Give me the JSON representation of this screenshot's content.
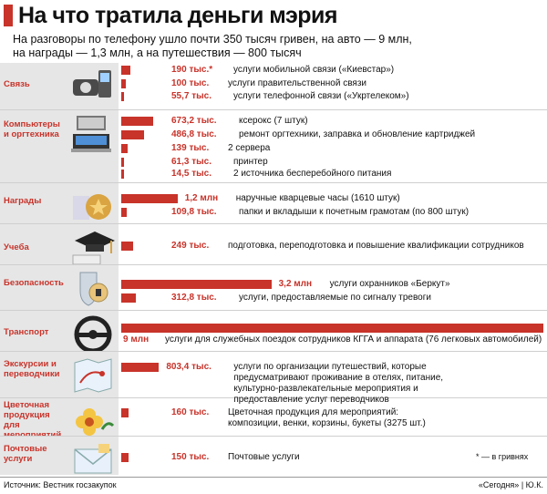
{
  "title": "На что тратила деньги мэрия",
  "subtitle_line1": "На разговоры по телефону ушло почти 350 тысяч гривен, на авто — 9 млн,",
  "subtitle_line2": "на награды — 1,3 млн, а на путешествия — 800 тысяч",
  "note": "* — в гривнях",
  "footer": {
    "source": "Источник: Вестник госзакупок",
    "credit": "«Сегодня» | Ю.К."
  },
  "colors": {
    "accent": "#c8332a",
    "category_bg": "#e6e6e6"
  },
  "categories": [
    {
      "label": "Связь",
      "icon": "phone-icon"
    },
    {
      "label": "Компьютеры и оргтехника",
      "icon": "computer-icon"
    },
    {
      "label": "Награды",
      "icon": "medal-icon"
    },
    {
      "label": "Учеба",
      "icon": "graduation-cap-icon"
    },
    {
      "label": "Безопасность",
      "icon": "shield-lock-icon"
    },
    {
      "label": "Транспорт",
      "icon": "steering-wheel-icon"
    },
    {
      "label": "Экскурсии и переводчики",
      "icon": "map-icon"
    },
    {
      "label": "Цветочная продукция для мероприятий",
      "icon": "flower-icon"
    },
    {
      "label": "Почтовые услуги",
      "icon": "envelope-icon"
    }
  ],
  "chart_data": {
    "type": "bar",
    "orientation": "horizontal",
    "unit": "гривен",
    "items": [
      {
        "category": "Связь",
        "value": 190000,
        "label": "190 тыс.*",
        "description": "услуги мобильной связи («Киевстар»)"
      },
      {
        "category": "Связь",
        "value": 100000,
        "label": "100 тыс.",
        "description": "услуги правительственной связи"
      },
      {
        "category": "Связь",
        "value": 55700,
        "label": "55,7 тыс.",
        "description": "услуги телефонной связи («Укртелеком»)"
      },
      {
        "category": "Компьютеры и оргтехника",
        "value": 673200,
        "label": "673,2 тыс.",
        "description": "ксерокс (7 штук)"
      },
      {
        "category": "Компьютеры и оргтехника",
        "value": 486800,
        "label": "486,8 тыс.",
        "description": "ремонт оргтехники, заправка и обновление картриджей"
      },
      {
        "category": "Компьютеры и оргтехника",
        "value": 139000,
        "label": "139 тыс.",
        "description": "2 сервера"
      },
      {
        "category": "Компьютеры и оргтехника",
        "value": 61300,
        "label": "61,3 тыс.",
        "description": "принтер"
      },
      {
        "category": "Компьютеры и оргтехника",
        "value": 14500,
        "label": "14,5 тыс.",
        "description": "2 источника бесперебойного питания"
      },
      {
        "category": "Награды",
        "value": 1200000,
        "label": "1,2 млн",
        "description": "наручные кварцевые часы (1610 штук)"
      },
      {
        "category": "Награды",
        "value": 109800,
        "label": "109,8 тыс.",
        "description": "папки и вкладыши к почетным грамотам (по 800 штук)"
      },
      {
        "category": "Учеба",
        "value": 249000,
        "label": "249 тыс.",
        "description": "подготовка, переподготовка и повышение квалификации сотрудников"
      },
      {
        "category": "Безопасность",
        "value": 3200000,
        "label": "3,2 млн",
        "description": "услуги охранников «Беркут»"
      },
      {
        "category": "Безопасность",
        "value": 312800,
        "label": "312,8 тыс.",
        "description": "услуги, предоставляемые по сигналу тревоги"
      },
      {
        "category": "Транспорт",
        "value": 9000000,
        "label": "9 млн",
        "description": "услуги для служебных поездок сотрудников КГГА и аппарата (76 легковых автомобилей)"
      },
      {
        "category": "Экскурсии и переводчики",
        "value": 803400,
        "label": "803,4 тыс.",
        "description": "услуги по организации путешествий, которые предусматривают проживание в отелях, питание, культурно-развлекательные мероприятия и предоставление услуг переводчиков"
      },
      {
        "category": "Цветочная продукция для мероприятий",
        "value": 160000,
        "label": "160 тыс.",
        "description": "Цветочная продукция для мероприятий: композиции, венки, корзины, букеты (3275 шт.)"
      },
      {
        "category": "Почтовые услуги",
        "value": 150000,
        "label": "150 тыс.",
        "description": "Почтовые услуги"
      }
    ]
  }
}
